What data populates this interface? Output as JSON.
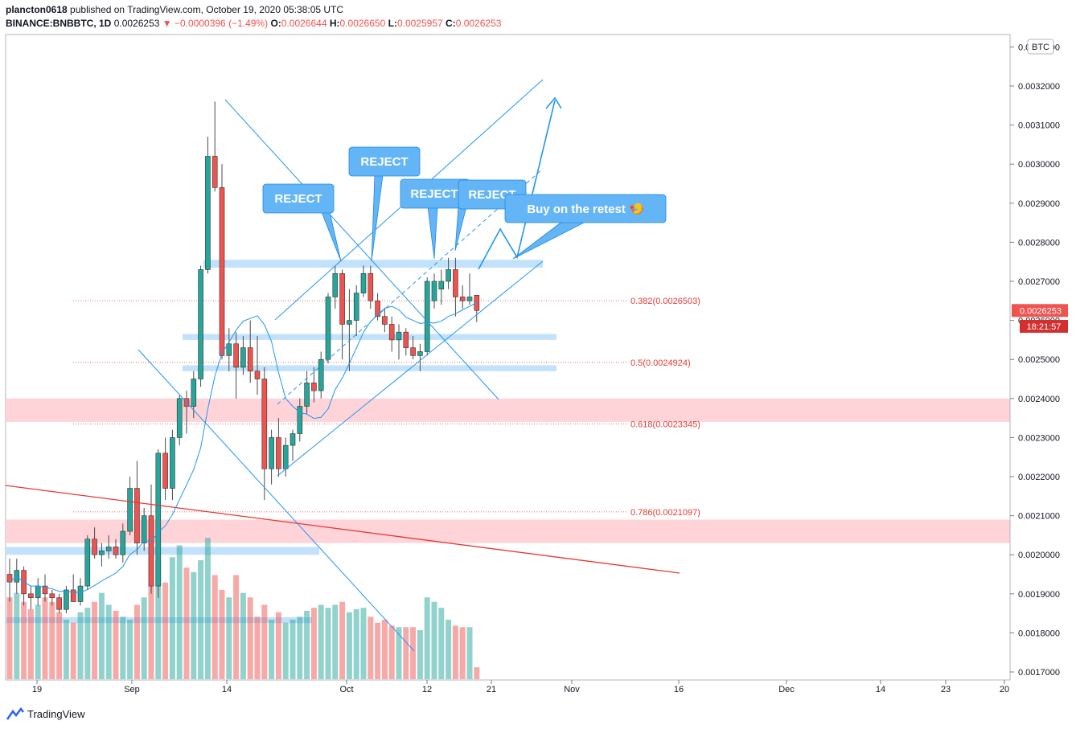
{
  "header": {
    "user": "plancton0618",
    "published": "published on TradingView.com, October 19, 2020 05:38:05 UTC",
    "symbol": "BINANCE:BNBBTC, 1D",
    "price": "0.0026253",
    "change_arrow": "▼",
    "change": "−0.0000396 (−1.49%)",
    "o_label": "O:",
    "o": "0.0026644",
    "h_label": "H:",
    "h": "0.0026650",
    "l_label": "L:",
    "l": "0.0025957",
    "c_label": "C:",
    "c": "0.0026253"
  },
  "footer": {
    "brand": "TradingView"
  },
  "axis": {
    "currency": "BTC",
    "last_price": "0.0026253",
    "countdown": "18:21:57"
  },
  "colors": {
    "up": "#26a69a",
    "down": "#ef5350",
    "drawing": "#2196f3",
    "callout": "#64b5f6",
    "fib_red": "#e53935",
    "zone_red": "#ffcdd2",
    "zone_blue": "#bbdefb"
  },
  "annotations": {
    "reject_1": "REJECT",
    "reject_2": "REJECT",
    "reject_3": "REJECT",
    "reject_4": "REJECT",
    "buy": "Buy on the retest 🍤"
  },
  "chart_data": {
    "type": "candlestick",
    "ylim": [
      0.00168,
      0.00334
    ],
    "y_ticks": [
      "0.0017000",
      "0.0018000",
      "0.0019000",
      "0.0020000",
      "0.0021000",
      "0.0022000",
      "0.0023000",
      "0.0024000",
      "0.0025000",
      "0.0026000",
      "0.0027000",
      "0.0028000",
      "0.0029000",
      "0.0030000",
      "0.0031000",
      "0.0032000",
      "0.0033000"
    ],
    "x_ticks": [
      "19",
      "Sep",
      "14",
      "Oct",
      "12",
      "21",
      "Nov",
      "16",
      "Dec",
      "14",
      "23",
      "20"
    ],
    "fib_levels": [
      {
        "label": "0.382(0.0026503)",
        "value": 0.0026503
      },
      {
        "label": "0.5(0.0024924)",
        "value": 0.0024924
      },
      {
        "label": "0.618(0.0023345)",
        "value": 0.0023345
      },
      {
        "label": "0.786(0.0021097)",
        "value": 0.0021097
      }
    ],
    "candles": [
      {
        "o": 0.00195,
        "h": 0.00199,
        "l": 0.00188,
        "c": 0.00193
      },
      {
        "o": 0.00193,
        "h": 0.00199,
        "l": 0.0019,
        "c": 0.00196
      },
      {
        "o": 0.00196,
        "h": 0.00197,
        "l": 0.00187,
        "c": 0.0019
      },
      {
        "o": 0.0019,
        "h": 0.00192,
        "l": 0.00186,
        "c": 0.00189
      },
      {
        "o": 0.00189,
        "h": 0.00194,
        "l": 0.00187,
        "c": 0.00192
      },
      {
        "o": 0.00192,
        "h": 0.00195,
        "l": 0.00188,
        "c": 0.0019
      },
      {
        "o": 0.0019,
        "h": 0.00191,
        "l": 0.00187,
        "c": 0.00189
      },
      {
        "o": 0.00189,
        "h": 0.0019,
        "l": 0.00185,
        "c": 0.00186
      },
      {
        "o": 0.00186,
        "h": 0.00192,
        "l": 0.00185,
        "c": 0.00191
      },
      {
        "o": 0.00191,
        "h": 0.00195,
        "l": 0.00188,
        "c": 0.00188
      },
      {
        "o": 0.00188,
        "h": 0.00194,
        "l": 0.00187,
        "c": 0.00192
      },
      {
        "o": 0.00192,
        "h": 0.00205,
        "l": 0.00191,
        "c": 0.00204
      },
      {
        "o": 0.00204,
        "h": 0.00207,
        "l": 0.00199,
        "c": 0.002
      },
      {
        "o": 0.002,
        "h": 0.00203,
        "l": 0.00197,
        "c": 0.00201
      },
      {
        "o": 0.00201,
        "h": 0.00205,
        "l": 0.00199,
        "c": 0.00202
      },
      {
        "o": 0.00202,
        "h": 0.00204,
        "l": 0.00199,
        "c": 0.002
      },
      {
        "o": 0.002,
        "h": 0.00208,
        "l": 0.00198,
        "c": 0.00206
      },
      {
        "o": 0.00206,
        "h": 0.0022,
        "l": 0.00205,
        "c": 0.00217
      },
      {
        "o": 0.00217,
        "h": 0.00224,
        "l": 0.002,
        "c": 0.00203
      },
      {
        "o": 0.00203,
        "h": 0.00212,
        "l": 0.00201,
        "c": 0.0021
      },
      {
        "o": 0.0021,
        "h": 0.00218,
        "l": 0.0019,
        "c": 0.00192
      },
      {
        "o": 0.00192,
        "h": 0.00227,
        "l": 0.00189,
        "c": 0.00226
      },
      {
        "o": 0.00226,
        "h": 0.0023,
        "l": 0.00214,
        "c": 0.00217
      },
      {
        "o": 0.00217,
        "h": 0.00232,
        "l": 0.00214,
        "c": 0.0023
      },
      {
        "o": 0.0023,
        "h": 0.00241,
        "l": 0.00228,
        "c": 0.0024
      },
      {
        "o": 0.0024,
        "h": 0.00242,
        "l": 0.00231,
        "c": 0.00238
      },
      {
        "o": 0.00238,
        "h": 0.00247,
        "l": 0.00235,
        "c": 0.00245
      },
      {
        "o": 0.00245,
        "h": 0.00274,
        "l": 0.00243,
        "c": 0.00273
      },
      {
        "o": 0.00273,
        "h": 0.00307,
        "l": 0.00272,
        "c": 0.00302
      },
      {
        "o": 0.00302,
        "h": 0.00316,
        "l": 0.00293,
        "c": 0.00294
      },
      {
        "o": 0.00294,
        "h": 0.003,
        "l": 0.0025,
        "c": 0.00251
      },
      {
        "o": 0.00251,
        "h": 0.00258,
        "l": 0.00247,
        "c": 0.00254
      },
      {
        "o": 0.00254,
        "h": 0.00257,
        "l": 0.0024,
        "c": 0.00248
      },
      {
        "o": 0.00248,
        "h": 0.00256,
        "l": 0.00246,
        "c": 0.00253
      },
      {
        "o": 0.00253,
        "h": 0.0026,
        "l": 0.00244,
        "c": 0.00247
      },
      {
        "o": 0.00247,
        "h": 0.00256,
        "l": 0.00241,
        "c": 0.00245
      },
      {
        "o": 0.00245,
        "h": 0.00248,
        "l": 0.00214,
        "c": 0.00222
      },
      {
        "o": 0.00222,
        "h": 0.00232,
        "l": 0.00218,
        "c": 0.0023
      },
      {
        "o": 0.0023,
        "h": 0.00235,
        "l": 0.0022,
        "c": 0.00222
      },
      {
        "o": 0.00222,
        "h": 0.0023,
        "l": 0.0022,
        "c": 0.00228
      },
      {
        "o": 0.00228,
        "h": 0.00232,
        "l": 0.00224,
        "c": 0.00231
      },
      {
        "o": 0.00231,
        "h": 0.0024,
        "l": 0.00229,
        "c": 0.00238
      },
      {
        "o": 0.00238,
        "h": 0.00247,
        "l": 0.00236,
        "c": 0.00244
      },
      {
        "o": 0.00244,
        "h": 0.00248,
        "l": 0.00239,
        "c": 0.00242
      },
      {
        "o": 0.00242,
        "h": 0.00252,
        "l": 0.0024,
        "c": 0.0025
      },
      {
        "o": 0.0025,
        "h": 0.00267,
        "l": 0.00249,
        "c": 0.00266
      },
      {
        "o": 0.00266,
        "h": 0.00274,
        "l": 0.00263,
        "c": 0.00272
      },
      {
        "o": 0.00272,
        "h": 0.00273,
        "l": 0.0025,
        "c": 0.00259
      },
      {
        "o": 0.00259,
        "h": 0.00268,
        "l": 0.00247,
        "c": 0.0026
      },
      {
        "o": 0.0026,
        "h": 0.00269,
        "l": 0.00256,
        "c": 0.00267
      },
      {
        "o": 0.00267,
        "h": 0.00274,
        "l": 0.00266,
        "c": 0.00272
      },
      {
        "o": 0.00272,
        "h": 0.00274,
        "l": 0.00263,
        "c": 0.00265
      },
      {
        "o": 0.00265,
        "h": 0.00267,
        "l": 0.0026,
        "c": 0.00261
      },
      {
        "o": 0.00261,
        "h": 0.00263,
        "l": 0.00257,
        "c": 0.00259
      },
      {
        "o": 0.00259,
        "h": 0.00261,
        "l": 0.00252,
        "c": 0.00255
      },
      {
        "o": 0.00255,
        "h": 0.00259,
        "l": 0.0025,
        "c": 0.00257
      },
      {
        "o": 0.00257,
        "h": 0.00258,
        "l": 0.00251,
        "c": 0.00253
      },
      {
        "o": 0.00253,
        "h": 0.00256,
        "l": 0.0025,
        "c": 0.00251
      },
      {
        "o": 0.00251,
        "h": 0.00254,
        "l": 0.00247,
        "c": 0.00252
      },
      {
        "o": 0.00252,
        "h": 0.00271,
        "l": 0.00251,
        "c": 0.0027
      },
      {
        "o": 0.00265,
        "h": 0.00272,
        "l": 0.00263,
        "c": 0.0027
      },
      {
        "o": 0.00268,
        "h": 0.00273,
        "l": 0.00264,
        "c": 0.0027
      },
      {
        "o": 0.0027,
        "h": 0.00276,
        "l": 0.00268,
        "c": 0.00273
      },
      {
        "o": 0.00273,
        "h": 0.00276,
        "l": 0.00261,
        "c": 0.00266
      },
      {
        "o": 0.00266,
        "h": 0.00269,
        "l": 0.00263,
        "c": 0.00265
      },
      {
        "o": 0.00265,
        "h": 0.00272,
        "l": 0.00264,
        "c": 0.00266
      },
      {
        "o": 0.0026644,
        "h": 0.002665,
        "l": 0.0025957,
        "c": 0.0026253
      }
    ],
    "volume": [
      0.55,
      0.58,
      0.52,
      0.47,
      0.5,
      0.55,
      0.52,
      0.45,
      0.4,
      0.38,
      0.45,
      0.48,
      0.52,
      0.58,
      0.5,
      0.46,
      0.42,
      0.4,
      0.5,
      0.55,
      0.95,
      0.8,
      0.65,
      0.82,
      0.9,
      0.75,
      0.72,
      0.8,
      0.95,
      0.7,
      0.6,
      0.55,
      0.7,
      0.58,
      0.55,
      0.42,
      0.5,
      0.4,
      0.45,
      0.38,
      0.4,
      0.42,
      0.46,
      0.48,
      0.5,
      0.48,
      0.5,
      0.52,
      0.45,
      0.47,
      0.48,
      0.42,
      0.38,
      0.4,
      0.36,
      0.35,
      0.35,
      0.35,
      0.33,
      0.55,
      0.52,
      0.48,
      0.4,
      0.36,
      0.35,
      0.35,
      0.08
    ]
  }
}
